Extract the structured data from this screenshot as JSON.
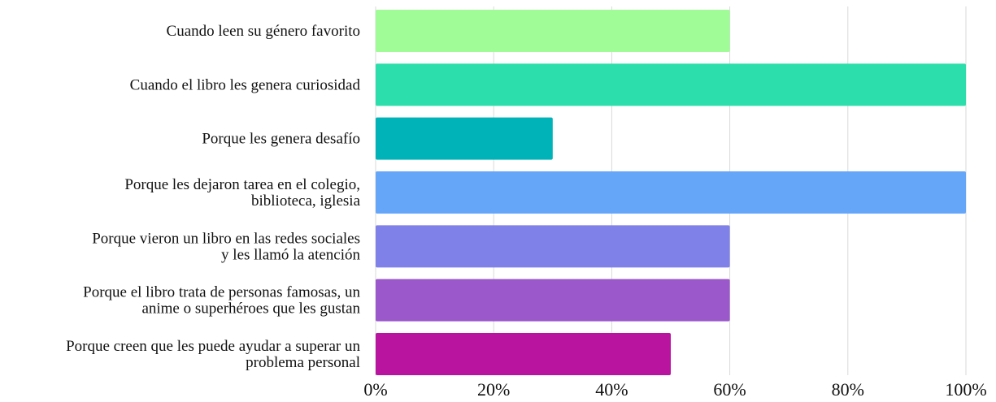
{
  "chart_data": {
    "type": "bar",
    "orientation": "horizontal",
    "categories": [
      [
        "Cuando leen su género favorito"
      ],
      [
        "Cuando el libro les genera curiosidad"
      ],
      [
        "Porque les genera desafío"
      ],
      [
        "Porque les dejaron tarea en el colegio,",
        "biblioteca, iglesia"
      ],
      [
        "Porque vieron un libro en las redes sociales",
        "y les llamó la atención"
      ],
      [
        "Porque el libro trata de personas famosas, un",
        "anime o superhéroes que les gustan"
      ],
      [
        "Porque creen que les puede ayudar a superar un",
        "problema personal"
      ]
    ],
    "values": [
      60,
      100,
      30,
      100,
      60,
      60,
      50
    ],
    "colors": [
      "#a0fc96",
      "#2cdeab",
      "#00b3b9",
      "#66a6f9",
      "#8081e8",
      "#9a58cb",
      "#b814a0"
    ],
    "x_ticks": [
      "0%",
      "20%",
      "40%",
      "60%",
      "80%",
      "100%"
    ],
    "xlim": [
      0,
      100
    ],
    "grid": "vertical",
    "legend": "none"
  }
}
